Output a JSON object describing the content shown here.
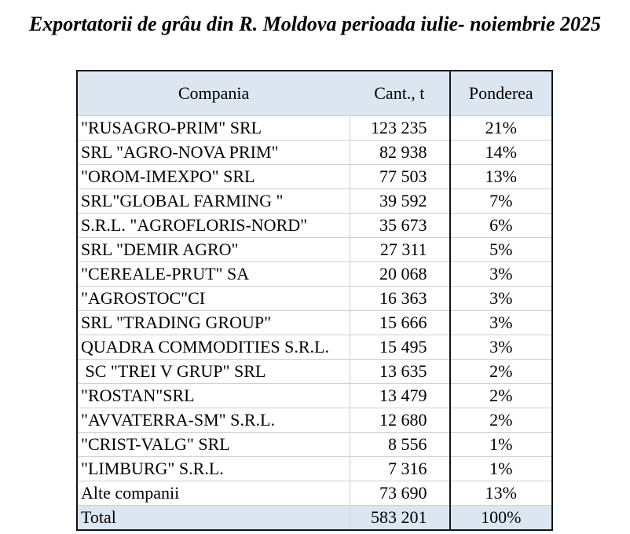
{
  "title": "Exportatorii de grâu din R. Moldova perioada iulie- noiembrie 2025",
  "colors": {
    "header_bg": "#dce6f1",
    "total_row_bg": "#dce6f1",
    "outer_border": "#141414",
    "grid_line": "#cfcfcf",
    "text": "#000000",
    "page_bg": "#ffffff"
  },
  "chart_data": {
    "type": "table",
    "title": "Exportatorii de grâu din R. Moldova perioada iulie- noiembrie 2025",
    "columns": [
      "Compania",
      "Cant., t",
      "Ponderea"
    ],
    "rows": [
      {
        "company": "\"RUSAGRO-PRIM\" SRL",
        "qty": "123 235",
        "share": "21%"
      },
      {
        "company": "SRL \"AGRO-NOVA PRIM\"",
        "qty": "82 938",
        "share": "14%"
      },
      {
        "company": "\"OROM-IMEXPO\" SRL",
        "qty": "77 503",
        "share": "13%"
      },
      {
        "company": "SRL\"GLOBAL FARMING \"",
        "qty": "39 592",
        "share": "7%"
      },
      {
        "company": "S.R.L. \"AGROFLORIS-NORD\"",
        "qty": "35 673",
        "share": "6%"
      },
      {
        "company": "SRL \"DEMIR AGRO\"",
        "qty": "27 311",
        "share": "5%"
      },
      {
        "company": "\"CEREALE-PRUT\" SA",
        "qty": "20 068",
        "share": "3%"
      },
      {
        "company": "\"AGROSTOC\"CI",
        "qty": "16 363",
        "share": "3%"
      },
      {
        "company": "SRL \"TRADING GROUP\"",
        "qty": "15 666",
        "share": "3%"
      },
      {
        "company": "QUADRA COMMODITIES S.R.L.",
        "qty": "15 495",
        "share": "3%"
      },
      {
        "company": " SC \"TREI V GRUP\" SRL",
        "qty": "13 635",
        "share": "2%"
      },
      {
        "company": "\"ROSTAN\"SRL",
        "qty": "13 479",
        "share": "2%"
      },
      {
        "company": "\"AVVATERRA-SM\" S.R.L.",
        "qty": "12 680",
        "share": "2%"
      },
      {
        "company": "\"CRIST-VALG\" SRL",
        "qty": "8 556",
        "share": "1%"
      },
      {
        "company": "\"LIMBURG\" S.R.L.",
        "qty": "7 316",
        "share": "1%"
      },
      {
        "company": "Alte companii",
        "qty": "73 690",
        "share": "13%"
      }
    ],
    "total": {
      "company": "Total",
      "qty": "583 201",
      "share": "100%"
    }
  }
}
